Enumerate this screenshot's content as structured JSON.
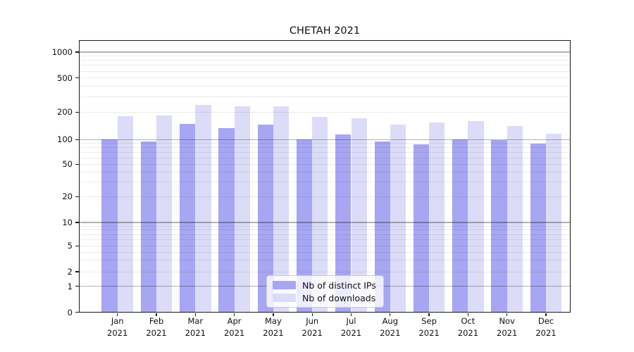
{
  "figure": {
    "background": "#ffffff"
  },
  "chart_data": {
    "type": "bar",
    "title": "CHETAH 2021",
    "categories": [
      "Jan",
      "Feb",
      "Mar",
      "Apr",
      "May",
      "Jun",
      "Jul",
      "Aug",
      "Sep",
      "Oct",
      "Nov",
      "Dec"
    ],
    "category_year": "2021",
    "series": [
      {
        "name": "Nb of distinct IPs",
        "color": "#a6a6f2",
        "values": [
          100,
          95,
          150,
          133,
          147,
          101,
          113,
          95,
          87,
          101,
          99,
          89
        ]
      },
      {
        "name": "Nb of downloads",
        "color": "#dcdcf8",
        "values": [
          180,
          184,
          241,
          233,
          233,
          178,
          173,
          145,
          154,
          160,
          140,
          116
        ]
      }
    ],
    "y_axis": {
      "scale": "symlog",
      "ticks": [
        0,
        1,
        2,
        5,
        10,
        20,
        50,
        100,
        200,
        500,
        1000
      ],
      "ylim": [
        0,
        1150
      ]
    },
    "x_axis": {
      "tick_label_format": "month over year"
    },
    "grid": {
      "enabled": true,
      "major_color": "#b3b3b3",
      "minor_color": "#ececec"
    },
    "legend": {
      "position": "bottom-center",
      "entries": [
        "Nb of distinct IPs",
        "Nb of downloads"
      ]
    }
  }
}
